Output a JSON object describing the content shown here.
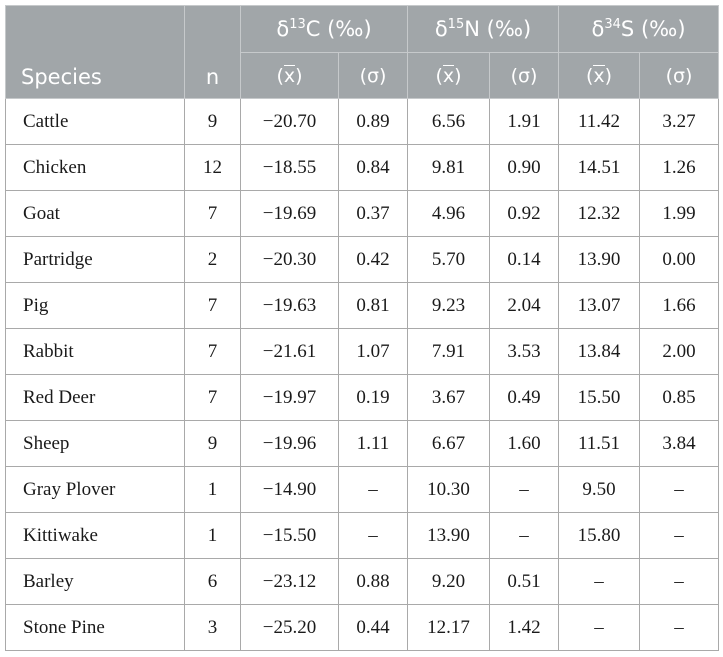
{
  "header": {
    "species_label": "Species",
    "n_label": "n",
    "groups": [
      {
        "delta": "δ",
        "mass": "13",
        "element": "C",
        "unit": "(‰)"
      },
      {
        "delta": "δ",
        "mass": "15",
        "element": "N",
        "unit": "(‰)"
      },
      {
        "delta": "δ",
        "mass": "34",
        "element": "S",
        "unit": "(‰)"
      }
    ],
    "mean_label": "x",
    "sd_label": "(σ)"
  },
  "rows": [
    {
      "species": "Cattle",
      "n": "9",
      "c_mean": "−20.70",
      "c_sd": "0.89",
      "n_mean": "6.56",
      "n_sd": "1.91",
      "s_mean": "11.42",
      "s_sd": "3.27"
    },
    {
      "species": "Chicken",
      "n": "12",
      "c_mean": "−18.55",
      "c_sd": "0.84",
      "n_mean": "9.81",
      "n_sd": "0.90",
      "s_mean": "14.51",
      "s_sd": "1.26"
    },
    {
      "species": "Goat",
      "n": "7",
      "c_mean": "−19.69",
      "c_sd": "0.37",
      "n_mean": "4.96",
      "n_sd": "0.92",
      "s_mean": "12.32",
      "s_sd": "1.99"
    },
    {
      "species": "Partridge",
      "n": "2",
      "c_mean": "−20.30",
      "c_sd": "0.42",
      "n_mean": "5.70",
      "n_sd": "0.14",
      "s_mean": "13.90",
      "s_sd": "0.00"
    },
    {
      "species": "Pig",
      "n": "7",
      "c_mean": "−19.63",
      "c_sd": "0.81",
      "n_mean": "9.23",
      "n_sd": "2.04",
      "s_mean": "13.07",
      "s_sd": "1.66"
    },
    {
      "species": "Rabbit",
      "n": "7",
      "c_mean": "−21.61",
      "c_sd": "1.07",
      "n_mean": "7.91",
      "n_sd": "3.53",
      "s_mean": "13.84",
      "s_sd": "2.00"
    },
    {
      "species": "Red Deer",
      "n": "7",
      "c_mean": "−19.97",
      "c_sd": "0.19",
      "n_mean": "3.67",
      "n_sd": "0.49",
      "s_mean": "15.50",
      "s_sd": "0.85"
    },
    {
      "species": "Sheep",
      "n": "9",
      "c_mean": "−19.96",
      "c_sd": "1.11",
      "n_mean": "6.67",
      "n_sd": "1.60",
      "s_mean": "11.51",
      "s_sd": "3.84"
    },
    {
      "species": "Gray Plover",
      "n": "1",
      "c_mean": "−14.90",
      "c_sd": "–",
      "n_mean": "10.30",
      "n_sd": "–",
      "s_mean": "9.50",
      "s_sd": "–"
    },
    {
      "species": "Kittiwake",
      "n": "1",
      "c_mean": "−15.50",
      "c_sd": "–",
      "n_mean": "13.90",
      "n_sd": "–",
      "s_mean": "15.80",
      "s_sd": "–"
    },
    {
      "species": "Barley",
      "n": "6",
      "c_mean": "−23.12",
      "c_sd": "0.88",
      "n_mean": "9.20",
      "n_sd": "0.51",
      "s_mean": "–",
      "s_sd": "–"
    },
    {
      "species": "Stone Pine",
      "n": "3",
      "c_mean": "−25.20",
      "c_sd": "0.44",
      "n_mean": "12.17",
      "n_sd": "1.42",
      "s_mean": "–",
      "s_sd": "–"
    }
  ]
}
